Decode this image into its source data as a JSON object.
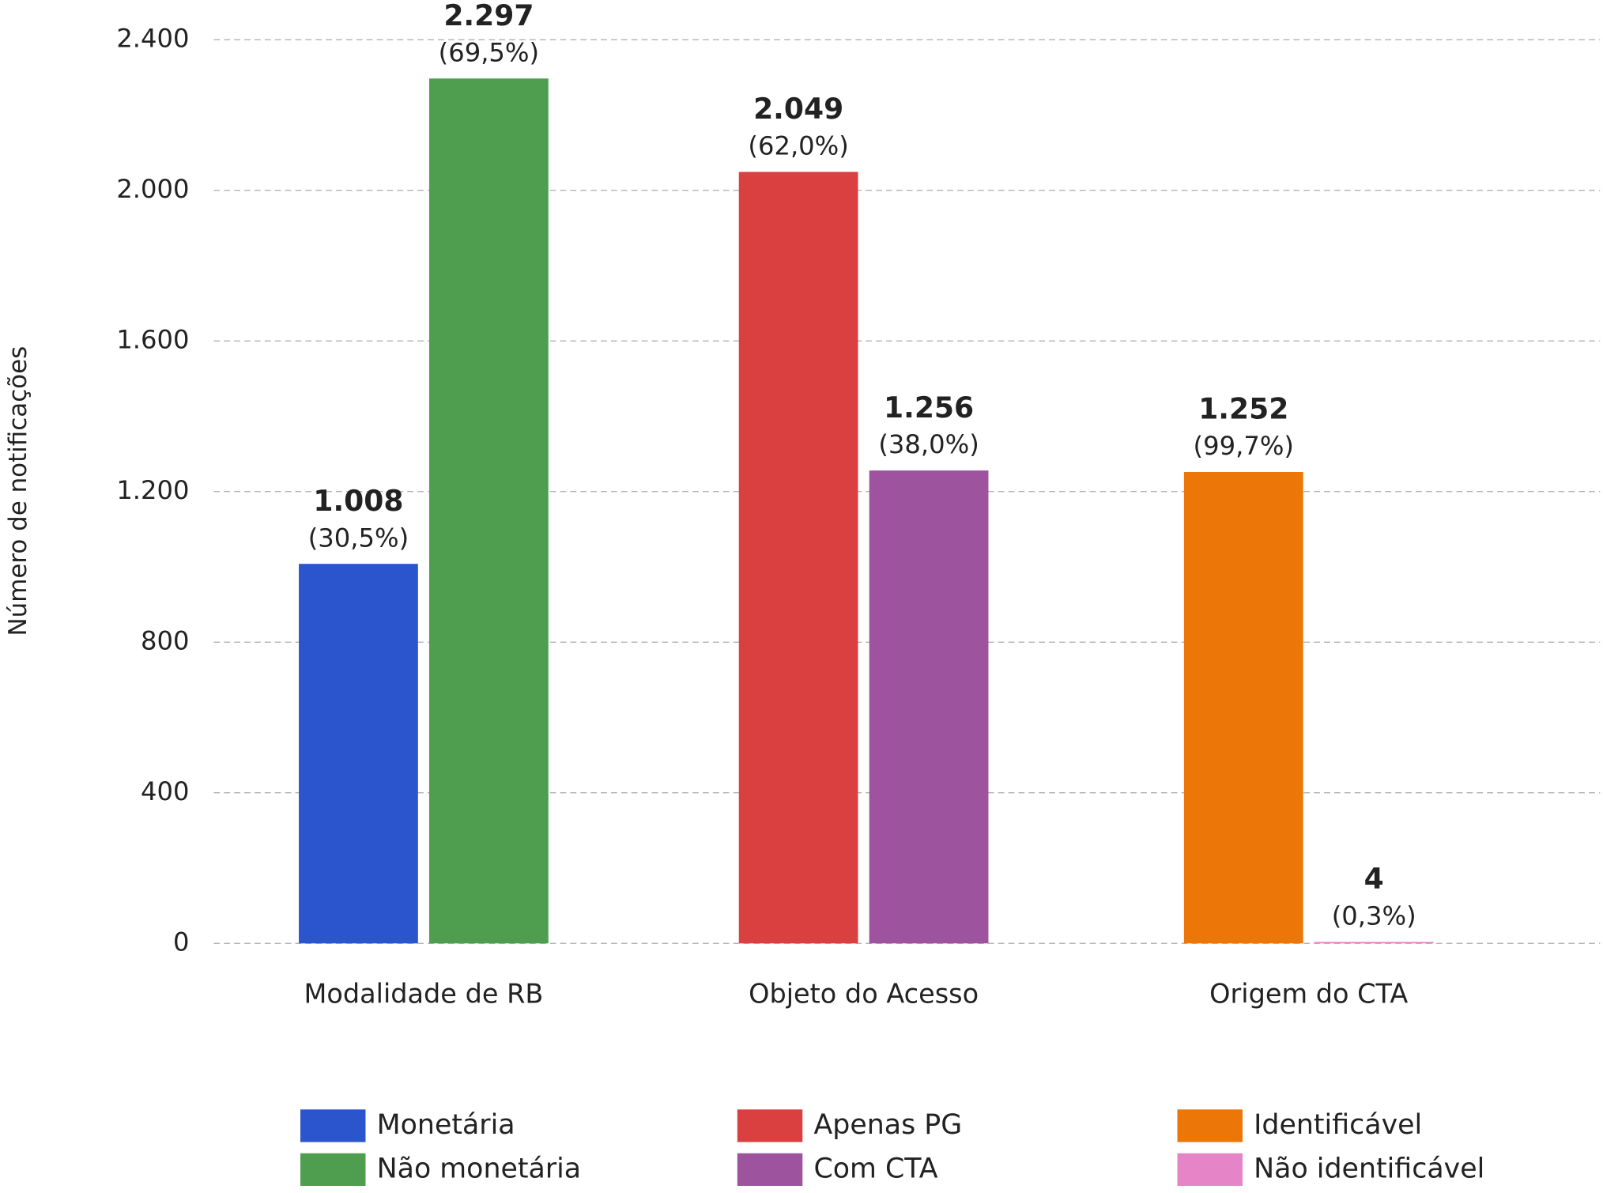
{
  "chart_data": {
    "type": "bar",
    "y_label": "Número de notificações",
    "categories": [
      "Modalidade de RB",
      "Objeto do Acesso",
      "Origem do CTA"
    ],
    "series": [
      {
        "name": "Monetária",
        "color": "#2b55cc",
        "values": [
          1008,
          null,
          null
        ],
        "value_labels": [
          "1.008",
          null,
          null
        ],
        "percent_labels": [
          "(30,5%)",
          null,
          null
        ]
      },
      {
        "name": "Não monetária",
        "color": "#4f9d4f",
        "values": [
          2297,
          null,
          null
        ],
        "value_labels": [
          "2.297",
          null,
          null
        ],
        "percent_labels": [
          "(69,5%)",
          null,
          null
        ]
      },
      {
        "name": "Apenas PG",
        "color": "#db4040",
        "values": [
          null,
          2049,
          null
        ],
        "value_labels": [
          null,
          "2.049",
          null
        ],
        "percent_labels": [
          null,
          "(62,0%)",
          null
        ]
      },
      {
        "name": "Com CTA",
        "color": "#9e539f",
        "values": [
          null,
          1256,
          null
        ],
        "value_labels": [
          null,
          "1.256",
          null
        ],
        "percent_labels": [
          null,
          "(38,0%)",
          null
        ]
      },
      {
        "name": "Identificável",
        "color": "#ec7708",
        "values": [
          null,
          null,
          1252
        ],
        "value_labels": [
          null,
          null,
          "1.252"
        ],
        "percent_labels": [
          null,
          null,
          "(99,7%)"
        ]
      },
      {
        "name": "Não identificável",
        "color": "#e585c8",
        "values": [
          null,
          null,
          4
        ],
        "percent_labels": [
          null,
          null,
          "(0,3%)"
        ]
      }
    ],
    "ylim": [
      0,
      2400
    ],
    "yticks": [
      0,
      400,
      800,
      {
        "value": 1200,
        "label": "1.200"
      },
      {
        "value": 1600,
        "label": "1.600"
      },
      {
        "value": 2000,
        "label": "2.000"
      },
      {
        "value": 2400,
        "label": "2.400"
      }
    ],
    "grid": true
  }
}
